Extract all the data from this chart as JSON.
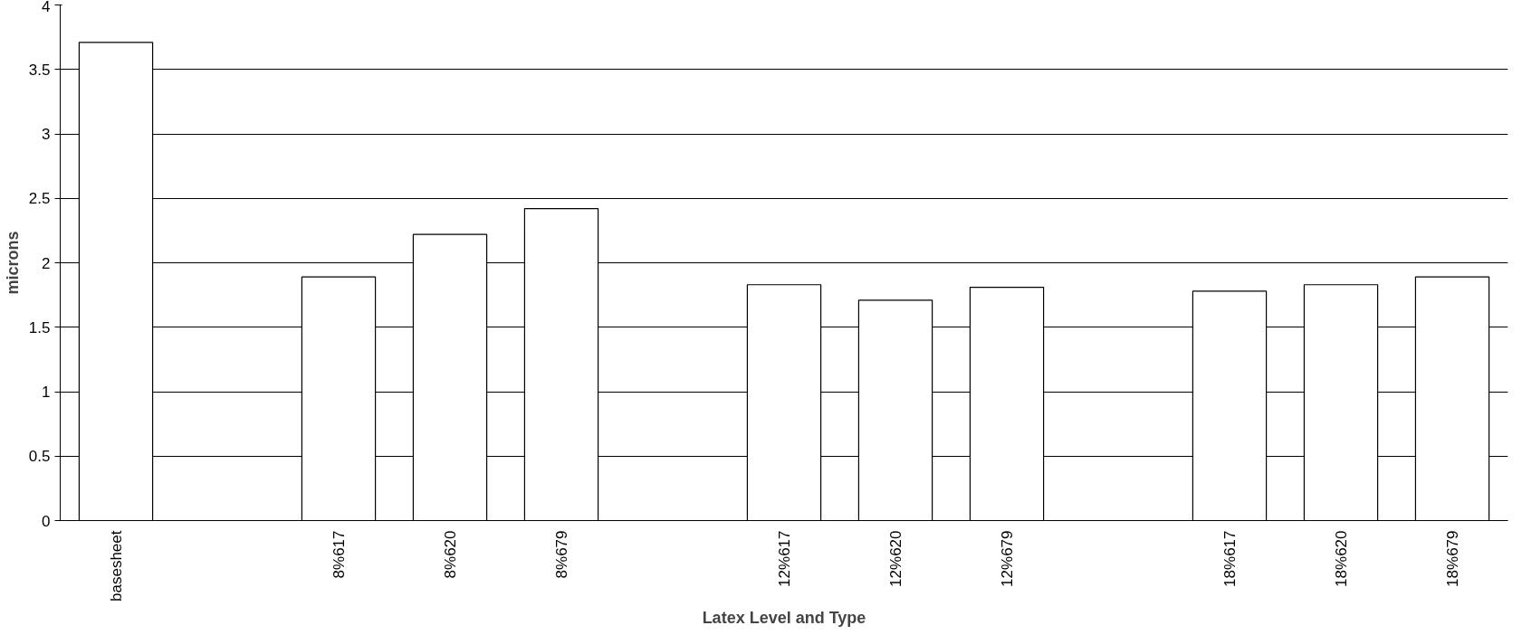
{
  "chart_data": {
    "type": "bar",
    "xlabel": "Latex Level and Type",
    "ylabel": "microns",
    "categories": [
      "basesheet",
      null,
      "8%617",
      "8%620",
      "8%679",
      null,
      "12%617",
      "12%620",
      "12%679",
      null,
      "18%617",
      "18%620",
      "18%679"
    ],
    "values": [
      3.71,
      null,
      1.89,
      2.22,
      2.42,
      null,
      1.83,
      1.71,
      1.81,
      null,
      1.78,
      1.83,
      1.89
    ],
    "color": "#ffffff",
    "ylim": [
      0,
      4
    ],
    "yticks": [
      0,
      0.5,
      1,
      1.5,
      2,
      2.5,
      3,
      3.5,
      4
    ],
    "grid": "y"
  }
}
